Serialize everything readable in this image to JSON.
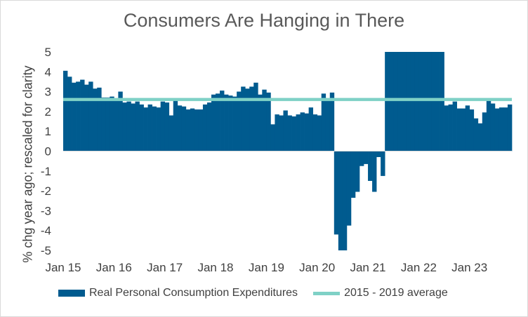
{
  "chart_data": {
    "type": "bar",
    "title": "Consumers Are Hanging in There",
    "xlabel": "",
    "ylabel": "% chg year ago; rescaled for clarity",
    "ylim": [
      -5,
      5
    ],
    "yticks": [
      5,
      4,
      3,
      2,
      1,
      0,
      -1,
      -2,
      -3,
      -4,
      -5
    ],
    "xtick_labels": [
      "Jan 15",
      "Jan 16",
      "Jan 17",
      "Jan 18",
      "Jan 19",
      "Jan 20",
      "Jan 21",
      "Jan 22",
      "Jan 23"
    ],
    "series": [
      {
        "name": "Real Personal Consumption Expenditures",
        "type": "bar",
        "color": "#005b8f",
        "start": "Jan 15",
        "frequency": "monthly",
        "values": [
          4.05,
          3.75,
          3.45,
          3.5,
          3.6,
          3.35,
          3.5,
          3.15,
          3.2,
          2.7,
          2.7,
          2.75,
          2.65,
          3.0,
          2.45,
          2.5,
          2.4,
          2.5,
          2.35,
          2.2,
          2.35,
          2.25,
          2.2,
          2.5,
          2.45,
          1.8,
          2.55,
          2.3,
          2.25,
          2.1,
          2.15,
          2.1,
          2.1,
          2.35,
          2.45,
          2.85,
          2.9,
          3.05,
          2.85,
          2.8,
          2.75,
          3.0,
          3.25,
          3.15,
          3.25,
          3.45,
          2.85,
          3.1,
          2.95,
          1.35,
          1.85,
          1.8,
          2.05,
          1.8,
          1.75,
          1.85,
          1.95,
          1.9,
          2.2,
          1.85,
          1.8,
          2.9,
          2.6,
          2.95,
          -4.2,
          -5.05,
          -5.05,
          -3.75,
          -2.35,
          -2.05,
          -0.75,
          -0.65,
          -1.5,
          -2.05,
          -0.3,
          -1.25,
          5.0,
          5.0,
          5.0,
          5.0,
          5.0,
          5.0,
          5.0,
          5.0,
          5.0,
          5.0,
          5.0,
          5.0,
          5.0,
          5.0,
          2.3,
          2.35,
          2.5,
          2.15,
          2.15,
          2.3,
          2.1,
          1.65,
          1.4,
          1.95,
          2.55,
          2.4,
          2.15,
          2.2,
          2.2,
          2.35
        ]
      },
      {
        "name": "2015 - 2019 average",
        "type": "line",
        "color": "#7fd1c6",
        "value": 2.6
      }
    ]
  }
}
